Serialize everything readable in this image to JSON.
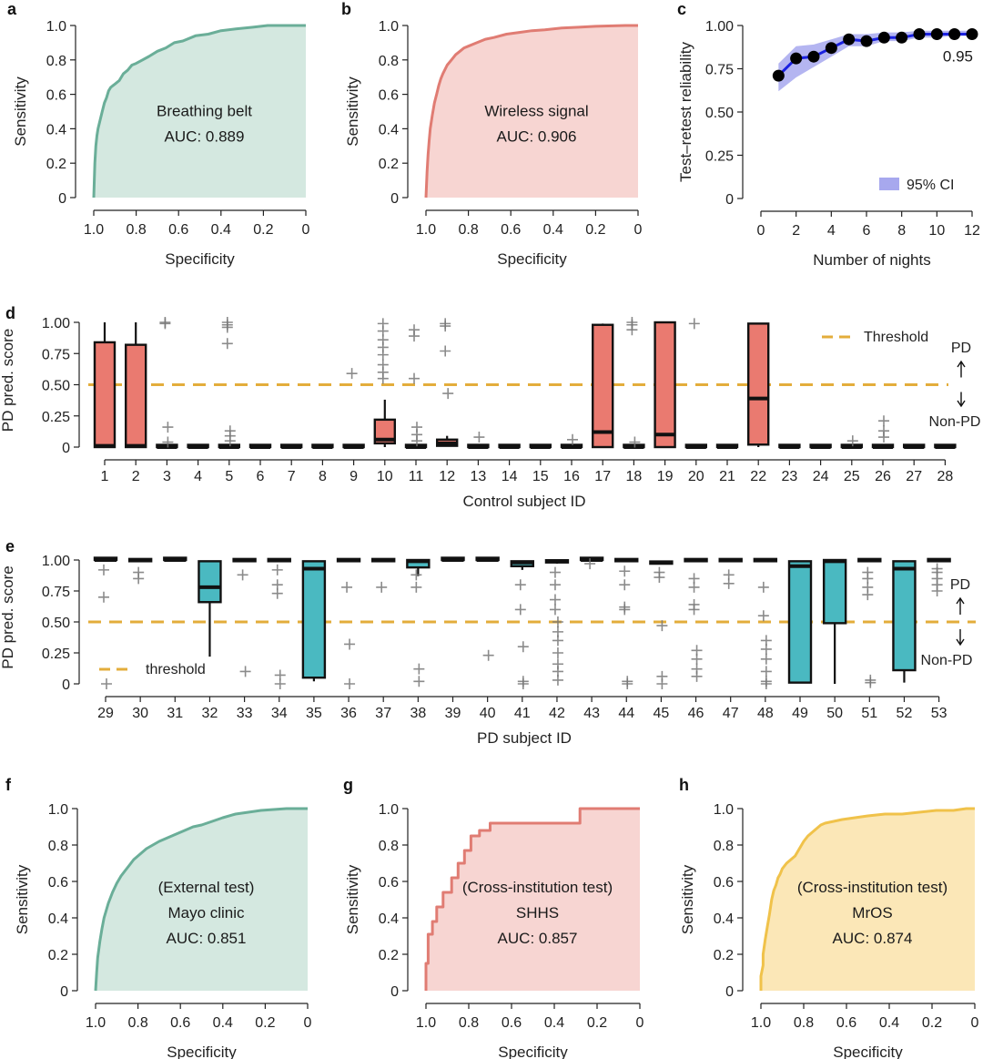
{
  "colors": {
    "teal": "#6aae98",
    "teal_fill": "#d4e8e0",
    "red": "#e07c73",
    "red_fill": "#f7d5d2",
    "yellow": "#f0c24a",
    "yellow_fill": "#fbe7b7",
    "box_red": "#ea7a70",
    "box_teal": "#4ab9c1",
    "threshold": "#e3ad3b",
    "blue": "#1a21e0",
    "ci": "#a7a8ee"
  },
  "chart_data": [
    {
      "panel": "a",
      "type": "area",
      "xlabel": "Specificity",
      "ylabel": "Sensitivity",
      "xticks": [
        "1.0",
        "0.8",
        "0.6",
        "0.4",
        "0.2",
        "0"
      ],
      "yticks": [
        "0",
        "0.2",
        "0.4",
        "0.6",
        "0.8",
        "1.0"
      ],
      "xlim": [
        1.0,
        0.0
      ],
      "ylim": [
        0.0,
        1.0
      ],
      "annotation": [
        "Breathing belt",
        "AUC: 0.889"
      ],
      "color": "teal",
      "specificity": [
        1.0,
        0.995,
        0.99,
        0.985,
        0.98,
        0.97,
        0.96,
        0.95,
        0.94,
        0.93,
        0.92,
        0.91,
        0.9,
        0.88,
        0.86,
        0.84,
        0.82,
        0.8,
        0.77,
        0.74,
        0.7,
        0.66,
        0.62,
        0.58,
        0.52,
        0.46,
        0.4,
        0.33,
        0.25,
        0.18,
        0.1,
        0.0
      ],
      "sensitivity": [
        0.0,
        0.2,
        0.3,
        0.36,
        0.4,
        0.45,
        0.5,
        0.55,
        0.58,
        0.62,
        0.64,
        0.65,
        0.66,
        0.68,
        0.72,
        0.74,
        0.77,
        0.78,
        0.8,
        0.82,
        0.85,
        0.87,
        0.9,
        0.91,
        0.94,
        0.95,
        0.97,
        0.98,
        0.99,
        1.0,
        1.0,
        1.0
      ]
    },
    {
      "panel": "b",
      "type": "area",
      "xlabel": "Specificity",
      "ylabel": "Sensitivity",
      "xticks": [
        "1.0",
        "0.8",
        "0.6",
        "0.4",
        "0.2",
        "0"
      ],
      "yticks": [
        "0",
        "0.2",
        "0.4",
        "0.6",
        "0.8",
        "1.0"
      ],
      "xlim": [
        1.0,
        0.0
      ],
      "ylim": [
        0.0,
        1.0
      ],
      "annotation": [
        "Wireless signal",
        "AUC: 0.906"
      ],
      "color": "red",
      "specificity": [
        1.0,
        0.995,
        0.99,
        0.985,
        0.98,
        0.97,
        0.96,
        0.95,
        0.94,
        0.93,
        0.92,
        0.9,
        0.88,
        0.86,
        0.84,
        0.82,
        0.8,
        0.76,
        0.72,
        0.68,
        0.62,
        0.56,
        0.5,
        0.44,
        0.36,
        0.28,
        0.2,
        0.12,
        0.06,
        0.0
      ],
      "sensitivity": [
        0.0,
        0.15,
        0.25,
        0.33,
        0.4,
        0.48,
        0.55,
        0.6,
        0.65,
        0.69,
        0.72,
        0.77,
        0.8,
        0.83,
        0.85,
        0.87,
        0.88,
        0.9,
        0.92,
        0.93,
        0.95,
        0.96,
        0.97,
        0.975,
        0.985,
        0.99,
        0.995,
        0.998,
        1.0,
        1.0
      ]
    },
    {
      "panel": "c",
      "type": "line",
      "xlabel": "Number of nights",
      "ylabel": "Test–retest reliability",
      "xticks": [
        "0",
        "2",
        "4",
        "6",
        "8",
        "10",
        "12"
      ],
      "yticks": [
        "0",
        "0.25",
        "0.50",
        "0.75",
        "1.00"
      ],
      "xlim": [
        0,
        12
      ],
      "ylim": [
        0.0,
        1.0
      ],
      "legend": "95% CI",
      "legend_position": "bottom-right",
      "end_label": "0.95",
      "x": [
        1,
        2,
        3,
        4,
        5,
        6,
        7,
        8,
        9,
        10,
        11,
        12
      ],
      "y": [
        0.71,
        0.81,
        0.82,
        0.87,
        0.92,
        0.91,
        0.93,
        0.93,
        0.95,
        0.95,
        0.95,
        0.95
      ],
      "ci_low": [
        0.62,
        0.7,
        0.76,
        0.82,
        0.88,
        0.88,
        0.91,
        0.91,
        0.93,
        0.93,
        0.94,
        0.94
      ],
      "ci_high": [
        0.78,
        0.88,
        0.89,
        0.92,
        0.95,
        0.95,
        0.96,
        0.96,
        0.97,
        0.97,
        0.97,
        0.97
      ]
    },
    {
      "panel": "d",
      "type": "box",
      "xlabel": "Control subject ID",
      "ylabel": "PD pred. score",
      "yticks": [
        "0",
        "0.25",
        "0.50",
        "0.75",
        "1.00"
      ],
      "ylim": [
        0.0,
        1.0
      ],
      "threshold": 0.5,
      "legend": "Threshold",
      "legend_position": "top-right",
      "side_labels": [
        "PD",
        "Non-PD"
      ],
      "color": "box_red",
      "ids": [
        "1",
        "2",
        "3",
        "4",
        "5",
        "6",
        "7",
        "8",
        "9",
        "10",
        "11",
        "12",
        "13",
        "14",
        "15",
        "16",
        "17",
        "18",
        "19",
        "20",
        "21",
        "22",
        "23",
        "24",
        "25",
        "26",
        "27",
        "28"
      ],
      "boxes": [
        [
          0,
          0,
          0.01,
          0.84,
          1.0
        ],
        [
          0,
          0,
          0.01,
          0.82,
          1.0
        ],
        [
          0,
          0,
          0,
          0.01,
          0.01
        ],
        [
          0,
          0,
          0,
          0,
          0
        ],
        [
          0,
          0,
          0,
          0.01,
          0.01
        ],
        [
          0,
          0,
          0,
          0,
          0
        ],
        [
          0,
          0,
          0,
          0,
          0
        ],
        [
          0,
          0,
          0,
          0,
          0
        ],
        [
          0,
          0,
          0,
          0,
          0
        ],
        [
          0,
          0.03,
          0.06,
          0.22,
          0.38
        ],
        [
          0,
          0,
          0,
          0.01,
          0.01
        ],
        [
          0.01,
          0.01,
          0.03,
          0.06,
          0.09
        ],
        [
          0,
          0,
          0,
          0,
          0
        ],
        [
          0,
          0,
          0,
          0,
          0
        ],
        [
          0,
          0,
          0,
          0,
          0
        ],
        [
          0,
          0,
          0,
          0.01,
          0.01
        ],
        [
          0,
          0,
          0.12,
          0.98,
          0.99
        ],
        [
          0,
          0,
          0,
          0.01,
          0.01
        ],
        [
          0,
          0,
          0.1,
          1.0,
          1.0
        ],
        [
          0,
          0,
          0,
          0,
          0
        ],
        [
          0,
          0,
          0,
          0,
          0
        ],
        [
          0,
          0.02,
          0.39,
          0.99,
          0.99
        ],
        [
          0,
          0,
          0,
          0,
          0
        ],
        [
          0,
          0,
          0,
          0,
          0
        ],
        [
          0,
          0,
          0,
          0,
          0
        ],
        [
          0,
          0,
          0,
          0.01,
          0.01
        ],
        [
          0,
          0,
          0,
          0,
          0
        ],
        [
          0,
          0,
          0,
          0,
          0
        ]
      ],
      "outliers": [
        [],
        [],
        [
          1.0,
          0.99,
          0.16,
          0.04
        ],
        [],
        [
          1.0,
          0.98,
          0.96,
          0.83,
          0.13,
          0.09,
          0.05
        ],
        [],
        [],
        [],
        [
          0.59
        ],
        [
          0.99,
          0.93,
          0.86,
          0.8,
          0.74,
          0.66,
          0.6,
          0.55
        ],
        [
          0.94,
          0.89,
          0.55,
          0.16,
          0.1,
          0.05
        ],
        [
          0.99,
          0.97,
          0.77,
          0.43
        ],
        [
          0.08
        ],
        [],
        [],
        [
          0.06
        ],
        [],
        [
          1.0,
          0.98,
          0.94,
          0.04
        ],
        [],
        [
          0.99
        ],
        [],
        [],
        [],
        [],
        [
          0.05
        ],
        [
          0.21,
          0.13,
          0.08
        ],
        [],
        []
      ]
    },
    {
      "panel": "e",
      "type": "box",
      "xlabel": "PD subject ID",
      "ylabel": "PD pred. score",
      "yticks": [
        "0",
        "0.25",
        "0.50",
        "0.75",
        "1.00"
      ],
      "ylim": [
        0.0,
        1.0
      ],
      "threshold": 0.5,
      "legend": "threshold",
      "legend_position": "bottom-left",
      "side_labels": [
        "PD",
        "Non-PD"
      ],
      "color": "box_teal",
      "ids": [
        "29",
        "30",
        "31",
        "32",
        "33",
        "34",
        "35",
        "36",
        "37",
        "38",
        "39",
        "40",
        "41",
        "42",
        "43",
        "44",
        "45",
        "46",
        "47",
        "48",
        "49",
        "50",
        "51",
        "52",
        "53"
      ],
      "boxes": [
        [
          1.0,
          1.0,
          1.0,
          1.0,
          1.0
        ],
        [
          0.99,
          0.99,
          1.0,
          1.0,
          1.0
        ],
        [
          1.0,
          1.0,
          1.0,
          1.0,
          1.0
        ],
        [
          0.22,
          0.66,
          0.78,
          0.99,
          0.99
        ],
        [
          0.99,
          0.99,
          1.0,
          1.0,
          1.0
        ],
        [
          0.99,
          0.99,
          1.0,
          1.0,
          1.0
        ],
        [
          0.02,
          0.05,
          0.93,
          0.99,
          0.99
        ],
        [
          0.99,
          0.99,
          1.0,
          1.0,
          1.0
        ],
        [
          0.99,
          0.99,
          1.0,
          1.0,
          1.0
        ],
        [
          0.87,
          0.94,
          0.99,
          1.0,
          1.0
        ],
        [
          1.0,
          1.0,
          1.0,
          1.0,
          1.0
        ],
        [
          1.0,
          1.0,
          1.0,
          1.0,
          1.0
        ],
        [
          0.92,
          0.95,
          0.98,
          0.99,
          0.99
        ],
        [
          0.97,
          0.98,
          0.99,
          0.99,
          0.99
        ],
        [
          1.0,
          1.0,
          1.0,
          1.0,
          1.0
        ],
        [
          0.99,
          0.99,
          1.0,
          1.0,
          1.0
        ],
        [
          0.97,
          0.97,
          0.98,
          0.98,
          0.98
        ],
        [
          0.99,
          0.99,
          1.0,
          1.0,
          1.0
        ],
        [
          0.99,
          0.99,
          1.0,
          1.0,
          1.0
        ],
        [
          0.99,
          0.99,
          1.0,
          1.0,
          1.0
        ],
        [
          0.01,
          0.01,
          0.95,
          0.99,
          0.99
        ],
        [
          0.0,
          0.49,
          0.99,
          1.0,
          1.0
        ],
        [
          0.99,
          0.99,
          1.0,
          1.0,
          1.0
        ],
        [
          0.01,
          0.11,
          0.93,
          0.99,
          0.99
        ],
        [
          0.99,
          0.99,
          1.0,
          1.0,
          1.0
        ]
      ],
      "outliers": [
        [
          0.92,
          0.7,
          0.0
        ],
        [
          0.9,
          0.85
        ],
        [],
        [],
        [
          0.88,
          0.1
        ],
        [
          0.92,
          0.8,
          0.73,
          0.07,
          0.0
        ],
        [],
        [
          0.78,
          0.32,
          0.0
        ],
        [
          0.78
        ],
        [
          0.88,
          0.78,
          0.12,
          0.02
        ],
        [],
        [
          0.23
        ],
        [
          0.8,
          0.6,
          0.3,
          0.02,
          0.0
        ],
        [
          0.9,
          0.8,
          0.68,
          0.6,
          0.5,
          0.42,
          0.35,
          0.25,
          0.16,
          0.1,
          0.03
        ],
        [
          0.97
        ],
        [
          0.91,
          0.8,
          0.62,
          0.6,
          0.02,
          0.0
        ],
        [
          0.9,
          0.86,
          0.47,
          0.06,
          0.0
        ],
        [
          0.85,
          0.78,
          0.64,
          0.6,
          0.27,
          0.2,
          0.12,
          0.06
        ],
        [
          0.88,
          0.81
        ],
        [
          0.78,
          0.55,
          0.35,
          0.28,
          0.2,
          0.1,
          0.02,
          0.0
        ],
        [],
        [],
        [
          0.9,
          0.85,
          0.78,
          0.72,
          0.03,
          0.01
        ],
        [],
        [
          0.93,
          0.9,
          0.85,
          0.8,
          0.75
        ]
      ]
    },
    {
      "panel": "f",
      "type": "area",
      "xlabel": "Specificity",
      "ylabel": "Sensitivity",
      "xticks": [
        "1.0",
        "0.8",
        "0.6",
        "0.4",
        "0.2",
        "0"
      ],
      "yticks": [
        "0",
        "0.2",
        "0.4",
        "0.6",
        "0.8",
        "1.0"
      ],
      "xlim": [
        1.0,
        0.0
      ],
      "ylim": [
        0.0,
        1.0
      ],
      "annotation": [
        "(External test)",
        "Mayo clinic",
        "AUC: 0.851"
      ],
      "color": "teal",
      "specificity": [
        1.0,
        0.995,
        0.99,
        0.98,
        0.97,
        0.96,
        0.94,
        0.92,
        0.9,
        0.88,
        0.86,
        0.84,
        0.82,
        0.79,
        0.76,
        0.73,
        0.7,
        0.66,
        0.62,
        0.58,
        0.54,
        0.5,
        0.45,
        0.4,
        0.34,
        0.28,
        0.22,
        0.16,
        0.1,
        0.0
      ],
      "sensitivity": [
        0.0,
        0.1,
        0.18,
        0.27,
        0.34,
        0.4,
        0.48,
        0.54,
        0.59,
        0.63,
        0.66,
        0.69,
        0.72,
        0.75,
        0.78,
        0.8,
        0.82,
        0.84,
        0.86,
        0.88,
        0.9,
        0.91,
        0.93,
        0.95,
        0.97,
        0.98,
        0.99,
        0.995,
        1.0,
        1.0
      ]
    },
    {
      "panel": "g",
      "type": "area",
      "xlabel": "Specificity",
      "ylabel": "Sensitivity",
      "xticks": [
        "1.0",
        "0.8",
        "0.6",
        "0.4",
        "0.2",
        "0"
      ],
      "yticks": [
        "0",
        "0.2",
        "0.4",
        "0.6",
        "0.8",
        "1.0"
      ],
      "xlim": [
        1.0,
        0.0
      ],
      "ylim": [
        0.0,
        1.0
      ],
      "annotation": [
        "(Cross-institution test)",
        "SHHS",
        "AUC: 0.857"
      ],
      "color": "red",
      "specificity": [
        1.0,
        1.0,
        0.99,
        0.99,
        0.97,
        0.97,
        0.95,
        0.95,
        0.92,
        0.92,
        0.88,
        0.88,
        0.85,
        0.85,
        0.82,
        0.82,
        0.79,
        0.79,
        0.75,
        0.75,
        0.7,
        0.7,
        0.28,
        0.28,
        0.0
      ],
      "sensitivity": [
        0.0,
        0.15,
        0.15,
        0.31,
        0.31,
        0.38,
        0.38,
        0.46,
        0.46,
        0.54,
        0.54,
        0.62,
        0.62,
        0.7,
        0.7,
        0.77,
        0.77,
        0.85,
        0.85,
        0.88,
        0.88,
        0.92,
        0.92,
        1.0,
        1.0
      ]
    },
    {
      "panel": "h",
      "type": "area",
      "xlabel": "Specificity",
      "ylabel": "Sensitivity",
      "xticks": [
        "1.0",
        "0.8",
        "0.6",
        "0.4",
        "0.2",
        "0"
      ],
      "yticks": [
        "0",
        "0.2",
        "0.4",
        "0.6",
        "0.8",
        "1.0"
      ],
      "xlim": [
        1.0,
        0.0
      ],
      "ylim": [
        0.0,
        1.0
      ],
      "annotation": [
        "(Cross-institution test)",
        "MrOS",
        "AUC: 0.874"
      ],
      "color": "yellow",
      "specificity": [
        1.0,
        1.0,
        0.99,
        0.99,
        0.98,
        0.97,
        0.96,
        0.95,
        0.94,
        0.93,
        0.92,
        0.91,
        0.9,
        0.88,
        0.86,
        0.84,
        0.82,
        0.8,
        0.78,
        0.76,
        0.74,
        0.72,
        0.7,
        0.66,
        0.62,
        0.56,
        0.5,
        0.42,
        0.34,
        0.26,
        0.18,
        0.1,
        0.04,
        0.0
      ],
      "sensitivity": [
        0.0,
        0.08,
        0.14,
        0.2,
        0.28,
        0.35,
        0.42,
        0.5,
        0.55,
        0.58,
        0.62,
        0.64,
        0.67,
        0.7,
        0.72,
        0.74,
        0.78,
        0.82,
        0.85,
        0.87,
        0.89,
        0.91,
        0.92,
        0.93,
        0.94,
        0.95,
        0.96,
        0.97,
        0.97,
        0.98,
        0.99,
        0.99,
        1.0,
        1.0
      ]
    }
  ]
}
